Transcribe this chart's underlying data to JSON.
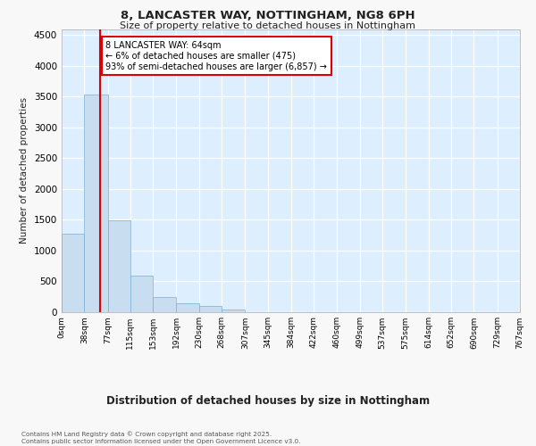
{
  "title_line1": "8, LANCASTER WAY, NOTTINGHAM, NG8 6PH",
  "title_line2": "Size of property relative to detached houses in Nottingham",
  "xlabel": "Distribution of detached houses by size in Nottingham",
  "ylabel": "Number of detached properties",
  "bar_color": "#c8ddf0",
  "bar_edge_color": "#7baed4",
  "bg_color": "#ddeeff",
  "grid_color": "#ffffff",
  "property_line_color": "#dd0000",
  "annotation_box_edge_color": "#dd0000",
  "bin_labels": [
    "0sqm",
    "38sqm",
    "77sqm",
    "115sqm",
    "153sqm",
    "192sqm",
    "230sqm",
    "268sqm",
    "307sqm",
    "345sqm",
    "384sqm",
    "422sqm",
    "460sqm",
    "499sqm",
    "537sqm",
    "575sqm",
    "614sqm",
    "652sqm",
    "690sqm",
    "729sqm",
    "767sqm"
  ],
  "bin_edges": [
    0,
    38,
    77,
    115,
    153,
    192,
    230,
    268,
    307,
    345,
    384,
    422,
    460,
    499,
    537,
    575,
    614,
    652,
    690,
    729,
    767
  ],
  "bar_heights": [
    1280,
    3540,
    1490,
    600,
    250,
    150,
    100,
    40,
    5,
    0,
    2,
    0,
    0,
    0,
    0,
    0,
    0,
    0,
    0,
    0
  ],
  "property_size": 64,
  "annotation_line1": "8 LANCASTER WAY: 64sqm",
  "annotation_line2": "← 6% of detached houses are smaller (475)",
  "annotation_line3": "93% of semi-detached houses are larger (6,857) →",
  "ylim_max": 4600,
  "yticks": [
    0,
    500,
    1000,
    1500,
    2000,
    2500,
    3000,
    3500,
    4000,
    4500
  ],
  "footer_line1": "Contains HM Land Registry data © Crown copyright and database right 2025.",
  "footer_line2": "Contains public sector information licensed under the Open Government Licence v3.0.",
  "fig_bg_color": "#f8f8f8"
}
